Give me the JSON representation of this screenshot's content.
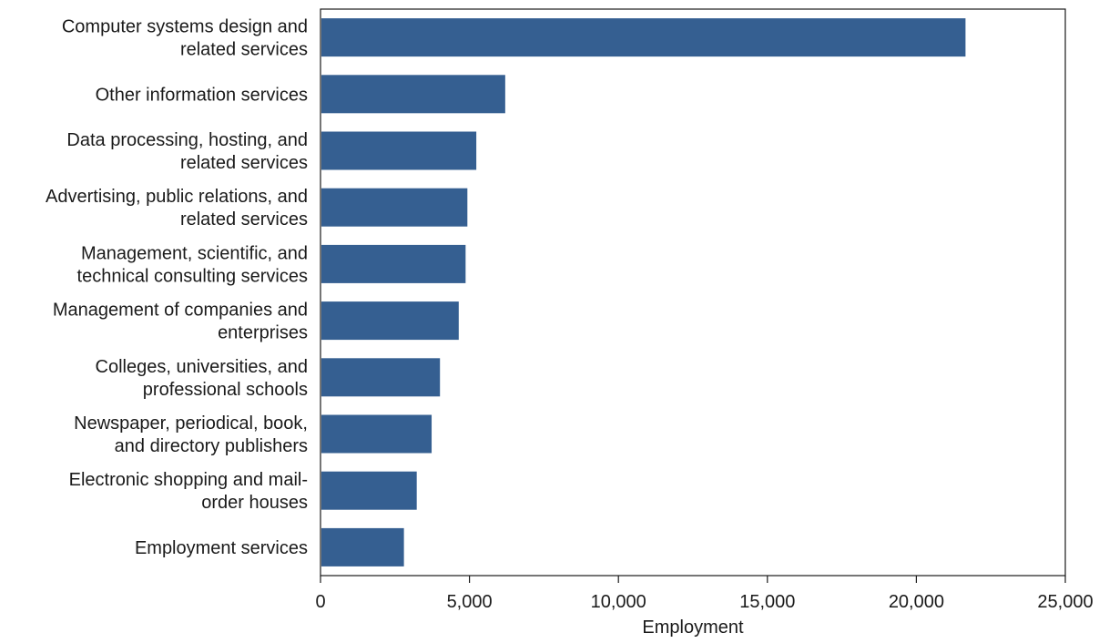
{
  "chart_data": {
    "type": "bar",
    "orientation": "horizontal",
    "categories": [
      [
        "Computer systems design and",
        "related services"
      ],
      [
        "Other information services"
      ],
      [
        "Data processing, hosting, and",
        "related services"
      ],
      [
        "Advertising, public relations, and",
        "related services"
      ],
      [
        "Management, scientific, and",
        "technical consulting services"
      ],
      [
        "Management of companies and",
        "enterprises"
      ],
      [
        "Colleges, universities, and",
        "professional schools"
      ],
      [
        "Newspaper, periodical, book,",
        "and directory publishers"
      ],
      [
        "Electronic shopping and mail-",
        "order houses"
      ],
      [
        "Employment services"
      ]
    ],
    "values": [
      21650,
      6200,
      5230,
      4930,
      4870,
      4640,
      4010,
      3730,
      3230,
      2800
    ],
    "xlabel": "Employment",
    "ylabel": "",
    "title": "",
    "xlim": [
      0,
      25000
    ],
    "xticks": [
      0,
      5000,
      10000,
      15000,
      20000,
      25000
    ],
    "xtick_labels": [
      "0",
      "5,000",
      "10,000",
      "15,000",
      "20,000",
      "25,000"
    ],
    "grid": false,
    "colors": {
      "bar": "#355f91",
      "axis": "#1a1a1a"
    }
  }
}
